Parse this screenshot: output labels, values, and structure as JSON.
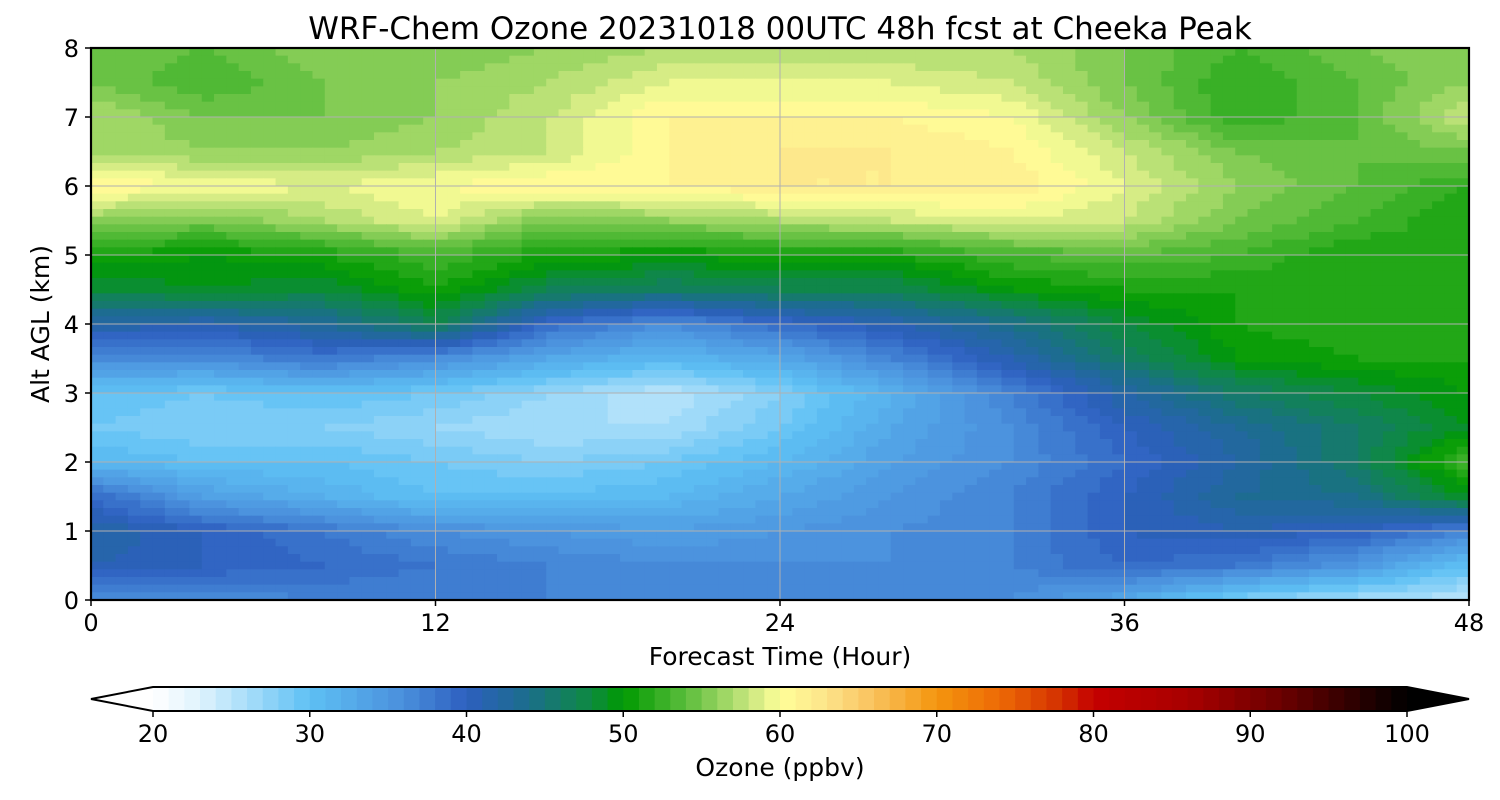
{
  "chart_data": {
    "type": "heatmap",
    "title": "WRF-Chem Ozone  20231018 00UTC 48h fcst at Cheeka Peak",
    "xlabel": "Forecast Time (Hour)",
    "ylabel": "Alt AGL (km)",
    "xlim": [
      0,
      48
    ],
    "ylim": [
      0,
      8
    ],
    "xticks": [
      "0",
      "12",
      "24",
      "36",
      "48"
    ],
    "yticks": [
      "0",
      "1",
      "2",
      "3",
      "4",
      "5",
      "6",
      "7",
      "8"
    ],
    "grid": true,
    "x_hours": [
      0,
      4,
      8,
      12,
      16,
      20,
      24,
      28,
      32,
      36,
      40,
      44,
      48
    ],
    "y_km": [
      0,
      0.5,
      1,
      1.5,
      2,
      2.5,
      3,
      3.5,
      4,
      4.5,
      5,
      5.5,
      6,
      6.5,
      7,
      7.5,
      8
    ],
    "values_ppbv": [
      [
        36,
        36,
        37,
        37,
        37,
        37,
        37,
        37,
        36,
        33,
        28,
        26,
        25
      ],
      [
        41,
        40,
        39,
        38,
        37,
        36,
        36,
        36,
        37,
        39,
        38,
        35,
        30
      ],
      [
        42,
        40,
        38,
        36,
        35,
        34,
        35,
        36,
        37,
        40,
        41,
        40,
        37
      ],
      [
        39,
        34,
        32,
        30,
        30,
        31,
        33,
        35,
        37,
        40,
        43,
        44,
        49
      ],
      [
        31,
        30,
        30,
        29,
        28,
        29,
        31,
        34,
        36,
        39,
        42,
        46,
        53
      ],
      [
        29,
        28,
        28,
        27,
        26,
        26,
        29,
        33,
        36,
        40,
        43,
        46,
        49
      ],
      [
        30,
        29,
        30,
        29,
        27,
        25,
        28,
        32,
        37,
        42,
        46,
        48,
        50
      ],
      [
        36,
        36,
        38,
        36,
        33,
        31,
        33,
        37,
        41,
        46,
        50,
        51,
        51
      ],
      [
        42,
        41,
        43,
        47,
        39,
        36,
        39,
        41,
        44,
        48,
        51,
        52,
        52
      ],
      [
        48,
        49,
        48,
        51,
        47,
        46,
        47,
        47,
        50,
        51,
        51,
        51,
        52
      ],
      [
        51,
        50,
        51,
        53,
        51,
        50,
        51,
        51,
        53,
        54,
        53,
        51,
        52
      ],
      [
        56,
        55,
        57,
        59,
        55,
        56,
        57,
        58,
        59,
        58,
        55,
        53,
        51
      ],
      [
        61,
        60,
        59,
        60,
        61,
        61,
        62,
        62,
        62,
        59,
        56,
        54,
        52
      ],
      [
        57,
        56,
        56,
        57,
        58,
        61,
        62,
        62,
        61,
        58,
        55,
        54,
        55
      ],
      [
        57,
        55,
        55,
        56,
        58,
        61,
        61,
        61,
        60,
        56,
        52,
        54,
        58
      ],
      [
        55,
        53,
        55,
        56,
        57,
        59,
        59,
        59,
        58,
        55,
        52,
        54,
        56
      ],
      [
        55,
        54,
        56,
        55,
        56,
        57,
        57,
        57,
        57,
        55,
        53,
        55,
        56
      ]
    ],
    "colorbar": {
      "label": "Ozone  (ppbv)",
      "min": 20,
      "max": 100,
      "step": 1,
      "extend": "both",
      "ticks": [
        "20",
        "30",
        "40",
        "50",
        "60",
        "70",
        "80",
        "90",
        "100"
      ],
      "color_stops": [
        [
          20,
          "#ffffff"
        ],
        [
          23,
          "#dff3fd"
        ],
        [
          30,
          "#5ec0f4"
        ],
        [
          36,
          "#4a8fdc"
        ],
        [
          40,
          "#2d5fbf"
        ],
        [
          44,
          "#1b6e8a"
        ],
        [
          48,
          "#0d8a40"
        ],
        [
          50,
          "#009a00"
        ],
        [
          54,
          "#5bbd3c"
        ],
        [
          58,
          "#c8e67e"
        ],
        [
          60,
          "#ffff99"
        ],
        [
          63,
          "#fde389"
        ],
        [
          66,
          "#f9c15c"
        ],
        [
          70,
          "#f4950e"
        ],
        [
          74,
          "#ed6a06"
        ],
        [
          78,
          "#d32f00"
        ],
        [
          80,
          "#c40000"
        ],
        [
          86,
          "#a80000"
        ],
        [
          92,
          "#6b0000"
        ],
        [
          100,
          "#000000"
        ]
      ]
    }
  }
}
